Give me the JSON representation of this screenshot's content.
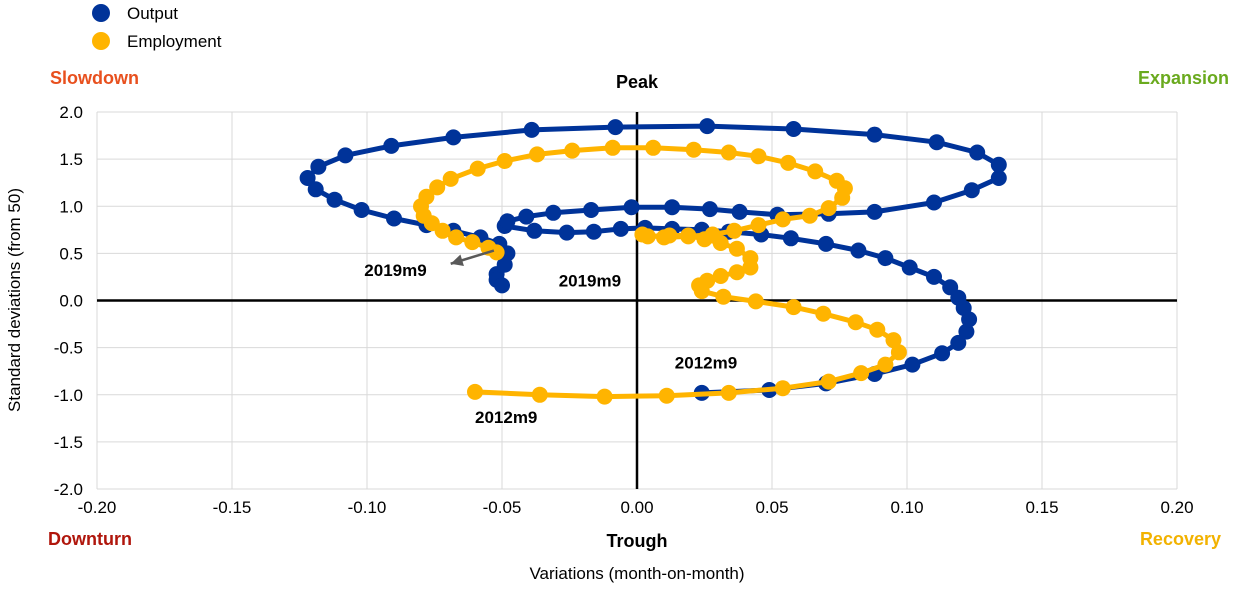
{
  "chart_data": {
    "type": "scatter",
    "xlabel": "Variations (month-on-month)",
    "ylabel": "Standard deviations (from 50)",
    "xlim": [
      -0.2,
      0.2
    ],
    "ylim": [
      -2.0,
      2.0
    ],
    "x_ticks": [
      "-0.20",
      "-0.15",
      "-0.10",
      "-0.05",
      "0.00",
      "0.05",
      "0.10",
      "0.15",
      "0.20"
    ],
    "y_ticks": [
      "2.0",
      "1.5",
      "1.0",
      "0.5",
      "0.0",
      "-0.5",
      "-1.0",
      "-1.5",
      "-2.0"
    ],
    "grid": true,
    "legend_position": "top-left",
    "quadrants": {
      "top_left": "Slowdown",
      "top_center": "Peak",
      "top_right": "Expansion",
      "bottom_left": "Downturn",
      "bottom_center": "Trough",
      "bottom_right": "Recovery"
    },
    "quadrant_colors": {
      "Slowdown": "#e8501e",
      "Peak": "#000000",
      "Expansion": "#6aaa1e",
      "Downturn": "#b0160c",
      "Trough": "#000000",
      "Recovery": "#f2b200"
    },
    "annotations": [
      {
        "text": "2019m9",
        "x": -0.101,
        "y": 0.26
      },
      {
        "text": "2019m9",
        "x": -0.029,
        "y": 0.15
      },
      {
        "text": "2012m9",
        "x": 0.014,
        "y": -0.72
      },
      {
        "text": "2012m9",
        "x": -0.06,
        "y": -1.3
      }
    ],
    "arrow": {
      "from": [
        -0.069,
        0.39
      ],
      "to": [
        -0.053,
        0.53
      ]
    },
    "series": [
      {
        "name": "Output",
        "color": "#003399",
        "points": [
          [
            0.024,
            -0.98
          ],
          [
            0.049,
            -0.95
          ],
          [
            0.07,
            -0.88
          ],
          [
            0.088,
            -0.78
          ],
          [
            0.102,
            -0.68
          ],
          [
            0.113,
            -0.56
          ],
          [
            0.119,
            -0.45
          ],
          [
            0.122,
            -0.33
          ],
          [
            0.123,
            -0.2
          ],
          [
            0.121,
            -0.08
          ],
          [
            0.119,
            0.03
          ],
          [
            0.116,
            0.14
          ],
          [
            0.11,
            0.25
          ],
          [
            0.101,
            0.35
          ],
          [
            0.092,
            0.45
          ],
          [
            0.082,
            0.53
          ],
          [
            0.07,
            0.6
          ],
          [
            0.057,
            0.66
          ],
          [
            0.046,
            0.7
          ],
          [
            0.034,
            0.73
          ],
          [
            0.024,
            0.75
          ],
          [
            0.013,
            0.76
          ],
          [
            0.003,
            0.77
          ],
          [
            -0.006,
            0.76
          ],
          [
            -0.016,
            0.73
          ],
          [
            -0.026,
            0.72
          ],
          [
            -0.038,
            0.74
          ],
          [
            -0.049,
            0.79
          ],
          [
            -0.048,
            0.84
          ],
          [
            -0.041,
            0.89
          ],
          [
            -0.031,
            0.93
          ],
          [
            -0.017,
            0.96
          ],
          [
            -0.002,
            0.99
          ],
          [
            0.013,
            0.99
          ],
          [
            0.027,
            0.97
          ],
          [
            0.038,
            0.94
          ],
          [
            0.052,
            0.91
          ],
          [
            0.071,
            0.92
          ],
          [
            0.088,
            0.94
          ],
          [
            0.11,
            1.04
          ],
          [
            0.124,
            1.17
          ],
          [
            0.134,
            1.3
          ],
          [
            0.134,
            1.44
          ],
          [
            0.126,
            1.57
          ],
          [
            0.111,
            1.68
          ],
          [
            0.088,
            1.76
          ],
          [
            0.058,
            1.82
          ],
          [
            0.026,
            1.85
          ],
          [
            -0.008,
            1.84
          ],
          [
            -0.039,
            1.81
          ],
          [
            -0.068,
            1.73
          ],
          [
            -0.091,
            1.64
          ],
          [
            -0.108,
            1.54
          ],
          [
            -0.118,
            1.42
          ],
          [
            -0.122,
            1.3
          ],
          [
            -0.119,
            1.18
          ],
          [
            -0.112,
            1.07
          ],
          [
            -0.102,
            0.96
          ],
          [
            -0.09,
            0.87
          ],
          [
            -0.078,
            0.8
          ],
          [
            -0.068,
            0.74
          ],
          [
            -0.058,
            0.67
          ],
          [
            -0.051,
            0.6
          ],
          [
            -0.048,
            0.5
          ],
          [
            -0.049,
            0.38
          ],
          [
            -0.052,
            0.28
          ],
          [
            -0.052,
            0.22
          ],
          [
            -0.05,
            0.16
          ]
        ]
      },
      {
        "name": "Employment",
        "color": "#ffb400",
        "points": [
          [
            -0.06,
            -0.97
          ],
          [
            -0.036,
            -1.0
          ],
          [
            -0.012,
            -1.02
          ],
          [
            0.011,
            -1.01
          ],
          [
            0.034,
            -0.98
          ],
          [
            0.054,
            -0.93
          ],
          [
            0.071,
            -0.86
          ],
          [
            0.083,
            -0.77
          ],
          [
            0.092,
            -0.68
          ],
          [
            0.097,
            -0.55
          ],
          [
            0.095,
            -0.42
          ],
          [
            0.089,
            -0.31
          ],
          [
            0.081,
            -0.23
          ],
          [
            0.069,
            -0.14
          ],
          [
            0.058,
            -0.07
          ],
          [
            0.044,
            -0.01
          ],
          [
            0.032,
            0.04
          ],
          [
            0.024,
            0.1
          ],
          [
            0.023,
            0.16
          ],
          [
            0.026,
            0.21
          ],
          [
            0.031,
            0.26
          ],
          [
            0.037,
            0.3
          ],
          [
            0.042,
            0.35
          ],
          [
            0.042,
            0.45
          ],
          [
            0.037,
            0.55
          ],
          [
            0.031,
            0.61
          ],
          [
            0.025,
            0.65
          ],
          [
            0.019,
            0.69
          ],
          [
            0.012,
            0.69
          ],
          [
            0.004,
            0.68
          ],
          [
            0.002,
            0.7
          ],
          [
            0.01,
            0.67
          ],
          [
            0.019,
            0.68
          ],
          [
            0.028,
            0.7
          ],
          [
            0.036,
            0.74
          ],
          [
            0.045,
            0.8
          ],
          [
            0.054,
            0.86
          ],
          [
            0.064,
            0.9
          ],
          [
            0.071,
            0.98
          ],
          [
            0.076,
            1.09
          ],
          [
            0.077,
            1.19
          ],
          [
            0.074,
            1.27
          ],
          [
            0.066,
            1.37
          ],
          [
            0.056,
            1.46
          ],
          [
            0.045,
            1.53
          ],
          [
            0.034,
            1.57
          ],
          [
            0.021,
            1.6
          ],
          [
            0.006,
            1.62
          ],
          [
            -0.009,
            1.62
          ],
          [
            -0.024,
            1.59
          ],
          [
            -0.037,
            1.55
          ],
          [
            -0.049,
            1.48
          ],
          [
            -0.059,
            1.4
          ],
          [
            -0.069,
            1.29
          ],
          [
            -0.074,
            1.2
          ],
          [
            -0.078,
            1.1
          ],
          [
            -0.08,
            1.0
          ],
          [
            -0.079,
            0.9
          ],
          [
            -0.076,
            0.82
          ],
          [
            -0.072,
            0.74
          ],
          [
            -0.067,
            0.67
          ],
          [
            -0.061,
            0.62
          ],
          [
            -0.055,
            0.56
          ],
          [
            -0.052,
            0.51
          ]
        ]
      }
    ]
  }
}
